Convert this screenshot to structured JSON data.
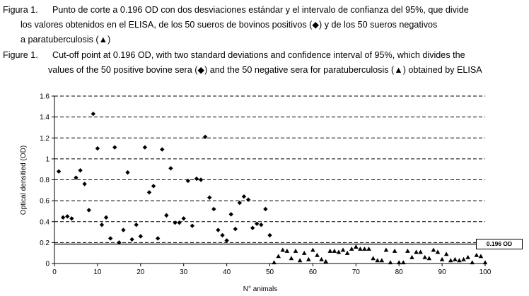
{
  "caption_es": {
    "label": "Figura 1.",
    "lines": [
      "Punto de corte a 0.196 OD con dos desviaciones estándar y el intervalo de confianza del 95%, que divide",
      "los valores obtenidos en el ELISA, de los 50 sueros de bovinos positivos (◆) y de los 50 sueros negativos",
      "a paratuberculosis (▲)"
    ]
  },
  "caption_en": {
    "label": "Figure 1.",
    "lines": [
      "Cut-off point at 0.196 OD, with two standard deviations and confidence interval of 95%, which divides the",
      "values of the 50 positive bovine sera (◆) and the 50 negative sera for paratuberculosis (▲) obtained by ELISA"
    ]
  },
  "chart_data": {
    "type": "scatter",
    "xlabel": "N° animals",
    "ylabel": "Optical densitied (OD)",
    "xlim": [
      0,
      100
    ],
    "ylim": [
      0,
      1.6
    ],
    "xticks": [
      "0",
      "10",
      "20",
      "30",
      "40",
      "50",
      "60",
      "70",
      "80",
      "90",
      "100"
    ],
    "yticks": [
      "0",
      "0.2",
      "0.4",
      "0.6",
      "0.8",
      "1",
      "1.2",
      "1.4",
      "1.6"
    ],
    "grid": "horizontal dashed",
    "cutoff": {
      "value": 0.196,
      "label": "0.196 OD"
    },
    "series": [
      {
        "marker": "diamond",
        "x": [
          1,
          2,
          3,
          4,
          5,
          6,
          7,
          8,
          9,
          10,
          11,
          12,
          13,
          14,
          15,
          16,
          17,
          18,
          19,
          20,
          21,
          22,
          23,
          24,
          25,
          26,
          27,
          28,
          29,
          30,
          31,
          32,
          33,
          34,
          35,
          36,
          37,
          38,
          39,
          40,
          41,
          42,
          43,
          44,
          45,
          46,
          47,
          48,
          49,
          50
        ],
        "y": [
          0.88,
          0.44,
          0.45,
          0.43,
          0.82,
          0.89,
          0.76,
          0.51,
          1.43,
          1.1,
          0.37,
          0.44,
          0.24,
          1.11,
          0.2,
          0.32,
          0.87,
          0.23,
          0.37,
          0.26,
          1.11,
          0.68,
          0.74,
          0.24,
          1.09,
          0.46,
          0.91,
          0.39,
          0.39,
          0.43,
          0.79,
          0.36,
          0.81,
          0.8,
          1.21,
          0.63,
          0.52,
          0.32,
          0.27,
          0.22,
          0.47,
          0.33,
          0.58,
          0.64,
          0.61,
          0.34,
          0.38,
          0.37,
          0.52,
          0.27
        ]
      },
      {
        "marker": "triangle",
        "x": [
          51,
          52,
          53,
          54,
          55,
          56,
          57,
          58,
          59,
          60,
          61,
          62,
          63,
          64,
          65,
          66,
          67,
          68,
          69,
          70,
          71,
          72,
          73,
          74,
          75,
          76,
          77,
          78,
          79,
          80,
          81,
          82,
          83,
          84,
          85,
          86,
          87,
          88,
          89,
          90,
          91,
          92,
          93,
          94,
          95,
          96,
          97,
          98,
          99,
          100
        ],
        "y": [
          0.01,
          0.07,
          0.13,
          0.12,
          0.05,
          0.12,
          0.03,
          0.1,
          0.04,
          0.13,
          0.08,
          0.04,
          0.02,
          0.12,
          0.12,
          0.11,
          0.13,
          0.1,
          0.14,
          0.16,
          0.14,
          0.14,
          0.14,
          0.05,
          0.03,
          0.03,
          0.13,
          0.01,
          0.12,
          0.01,
          0.01,
          0.12,
          0.06,
          0.11,
          0.11,
          0.06,
          0.05,
          0.13,
          0.11,
          0.04,
          0.09,
          0.03,
          0.04,
          0.03,
          0.04,
          0.06,
          0.01,
          0.08,
          0.07,
          0.01
        ]
      }
    ]
  }
}
